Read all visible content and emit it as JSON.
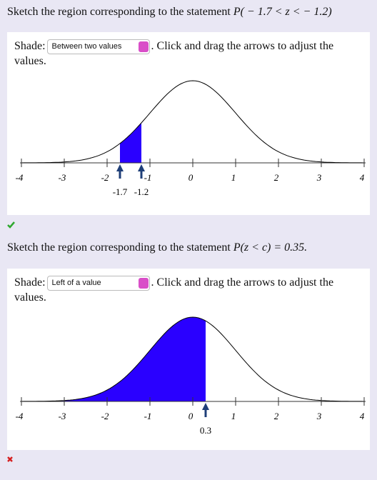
{
  "questions": [
    {
      "prompt": "Sketch the region corresponding to the statement",
      "statement": "P( − 1.7 < z < − 1.2)",
      "shade_label": "Shade:",
      "shade_option": "Between two values",
      "instruction": "Click and drag the arrows to adjust the values.",
      "plot": {
        "xlim": [
          -4,
          4
        ],
        "xticks": [
          -4,
          -3,
          -2,
          -1,
          0,
          1,
          2,
          3,
          4
        ],
        "arrows": [
          -1.7,
          -1.2
        ],
        "fill": "#2a00ff",
        "arrow_color": "#1f3f78"
      }
    },
    {
      "prompt": "Sketch the region corresponding to the statement",
      "statement": "P(z < c) = 0.35.",
      "shade_label": "Shade:",
      "shade_option": "Left of a value",
      "instruction": "Click and drag the arrows to adjust the values.",
      "plot": {
        "xlim": [
          -4,
          4
        ],
        "xticks": [
          -4,
          -3,
          -2,
          -1,
          0,
          1,
          2,
          3,
          4
        ],
        "arrows": [
          0.3
        ],
        "fill": "#2a00ff",
        "arrow_color": "#1f3f78"
      }
    }
  ]
}
